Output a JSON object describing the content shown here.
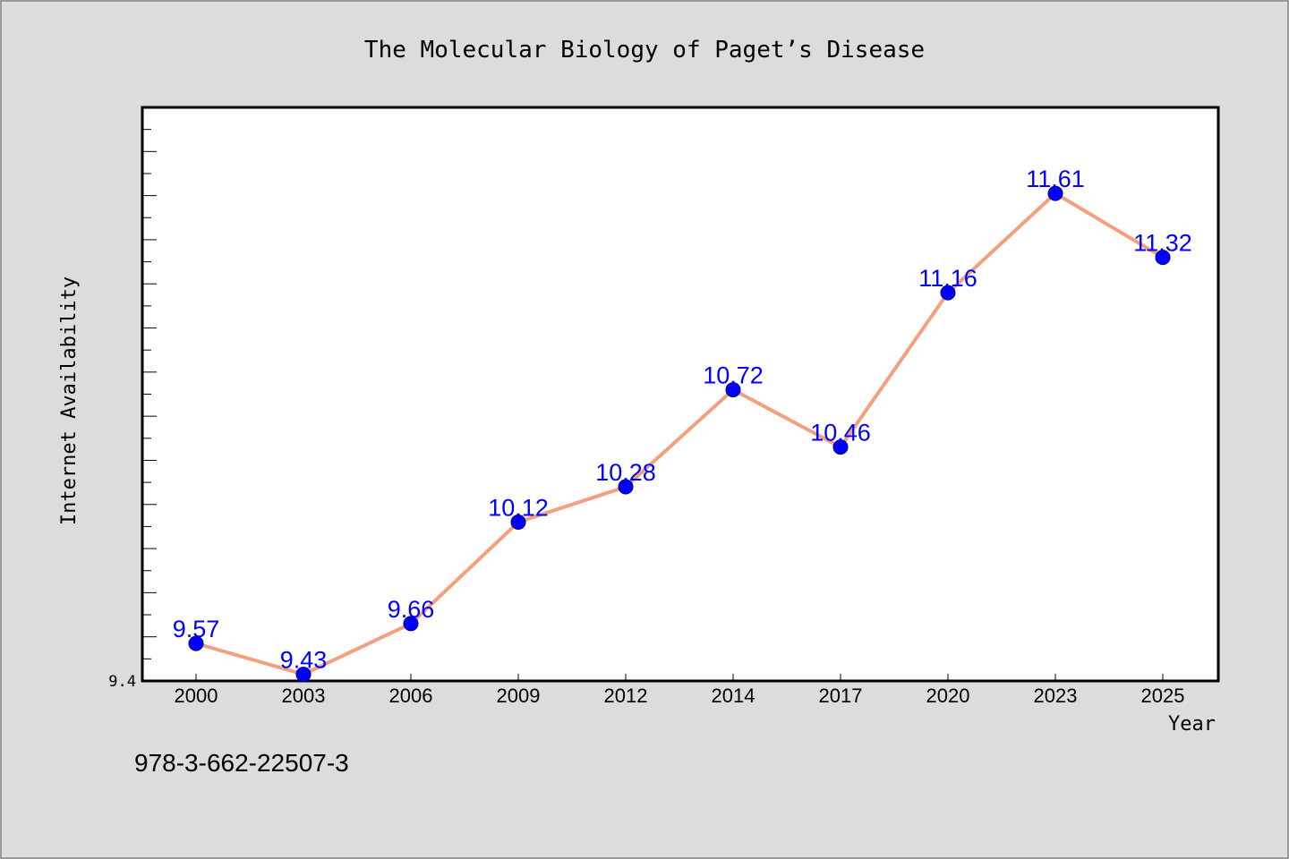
{
  "chart_data": {
    "type": "line",
    "title": "The Molecular Biology of Paget’s Disease",
    "xlabel": "Year",
    "ylabel": "Internet Availability",
    "categories": [
      "2000",
      "2003",
      "2006",
      "2009",
      "2012",
      "2014",
      "2017",
      "2020",
      "2023",
      "2025"
    ],
    "series": [
      {
        "values": [
          9.57,
          9.43,
          9.66,
          10.12,
          10.28,
          10.72,
          10.46,
          11.16,
          11.61,
          11.32
        ]
      }
    ],
    "data_labels": [
      "9.57",
      "9.43",
      "9.66",
      "10.12",
      "10.28",
      "10.72",
      "10.46",
      "11.16",
      "11.61",
      "11.32"
    ],
    "ytick_labels": [
      "9.4"
    ],
    "ylim": [
      9.4,
      12.0
    ],
    "grid": false,
    "legend": "none"
  },
  "footnote": "978-3-662-22507-3",
  "colors": {
    "background": "#dcdcdc",
    "plot_background": "#ffffff",
    "line": "#f4a07f",
    "marker": "#0000ff",
    "data_label": "#0000ff"
  }
}
